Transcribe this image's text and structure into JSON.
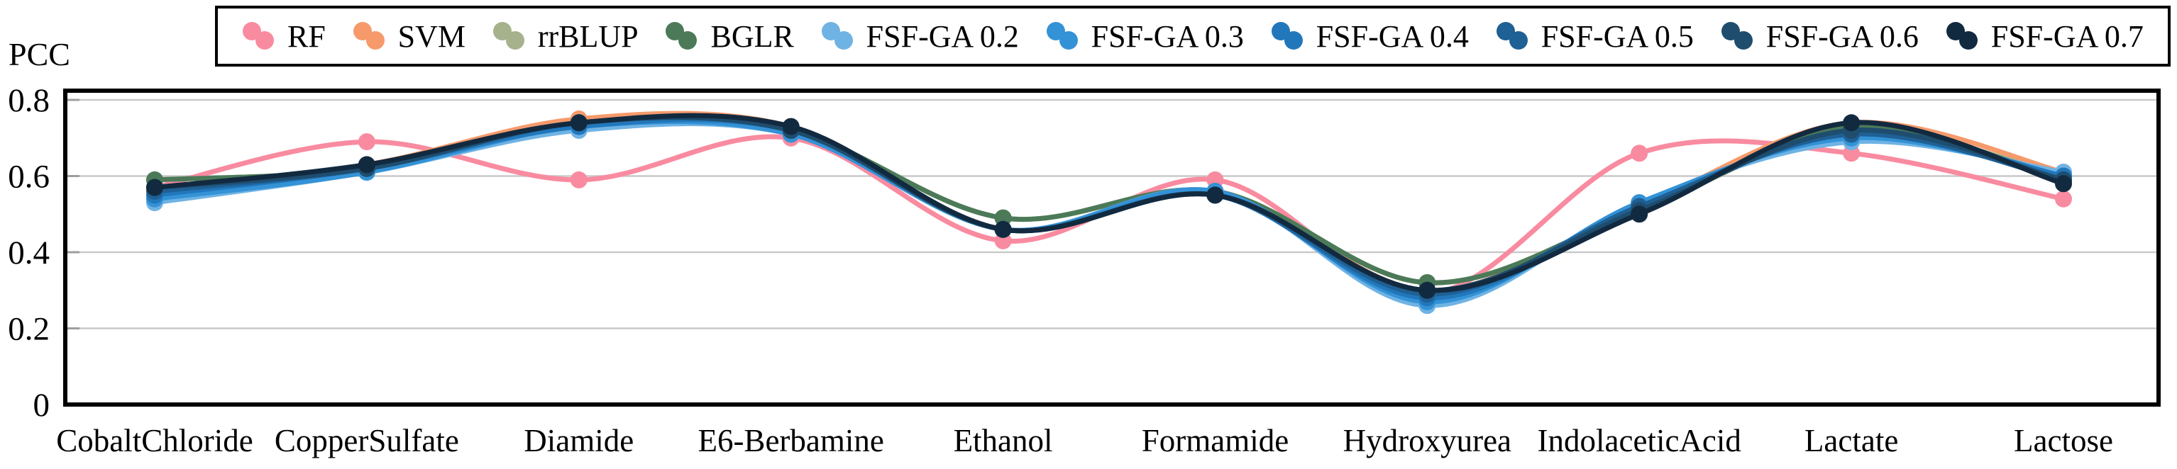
{
  "chart_data": {
    "type": "line",
    "title": "",
    "ylabel": "PCC",
    "xlabel": "",
    "legend_position": "top",
    "grid": "horizontal-only",
    "ylim": [
      0,
      0.823
    ],
    "ytick_labels": [
      "0",
      "0.2",
      "0.4",
      "0.6",
      "0.8"
    ],
    "yticks": [
      0,
      0.2,
      0.4,
      0.6,
      0.8
    ],
    "categories": [
      "CobaltChloride",
      "CopperSulfate",
      "Diamide",
      "E6-Berbamine",
      "Ethanol",
      "Formamide",
      "Hydroxyurea",
      "IndolaceticAcid",
      "Lactate",
      "Lactose"
    ],
    "colors": {
      "grid": "#c9c9c9",
      "frame": "#000000",
      "tick": "#9e9e9e",
      "text": "#000000"
    },
    "series": [
      {
        "name": "RF",
        "color": "#F98BA0",
        "values": [
          0.57,
          0.69,
          0.59,
          0.7,
          0.43,
          0.59,
          0.29,
          0.66,
          0.66,
          0.54
        ]
      },
      {
        "name": "SVM",
        "color": "#F69A6C",
        "values": [
          0.57,
          0.63,
          0.75,
          0.73,
          0.46,
          0.56,
          0.3,
          0.52,
          0.74,
          0.61
        ]
      },
      {
        "name": "rrBLUP",
        "color": "#A5B28C",
        "values": [
          0.59,
          0.62,
          0.74,
          0.72,
          0.49,
          0.56,
          0.32,
          0.51,
          0.72,
          0.6
        ]
      },
      {
        "name": "BGLR",
        "color": "#4C7A58",
        "values": [
          0.59,
          0.62,
          0.74,
          0.72,
          0.49,
          0.56,
          0.32,
          0.51,
          0.73,
          0.59
        ]
      },
      {
        "name": "FSF-GA 0.2",
        "color": "#6FB3E4",
        "values": [
          0.53,
          0.61,
          0.72,
          0.71,
          0.46,
          0.56,
          0.26,
          0.53,
          0.69,
          0.61
        ]
      },
      {
        "name": "FSF-GA 0.3",
        "color": "#3492D6",
        "values": [
          0.54,
          0.61,
          0.73,
          0.71,
          0.46,
          0.56,
          0.27,
          0.53,
          0.7,
          0.6
        ]
      },
      {
        "name": "FSF-GA 0.4",
        "color": "#2277BB",
        "values": [
          0.55,
          0.62,
          0.73,
          0.72,
          0.46,
          0.55,
          0.28,
          0.52,
          0.71,
          0.6
        ]
      },
      {
        "name": "FSF-GA 0.5",
        "color": "#1F6095",
        "values": [
          0.56,
          0.62,
          0.74,
          0.72,
          0.46,
          0.55,
          0.29,
          0.52,
          0.71,
          0.59
        ]
      },
      {
        "name": "FSF-GA 0.6",
        "color": "#1E4D6E",
        "values": [
          0.57,
          0.62,
          0.74,
          0.72,
          0.46,
          0.55,
          0.3,
          0.51,
          0.72,
          0.59
        ]
      },
      {
        "name": "FSF-GA 0.7",
        "color": "#122A40",
        "values": [
          0.57,
          0.63,
          0.74,
          0.73,
          0.46,
          0.55,
          0.3,
          0.5,
          0.74,
          0.58
        ]
      }
    ]
  }
}
